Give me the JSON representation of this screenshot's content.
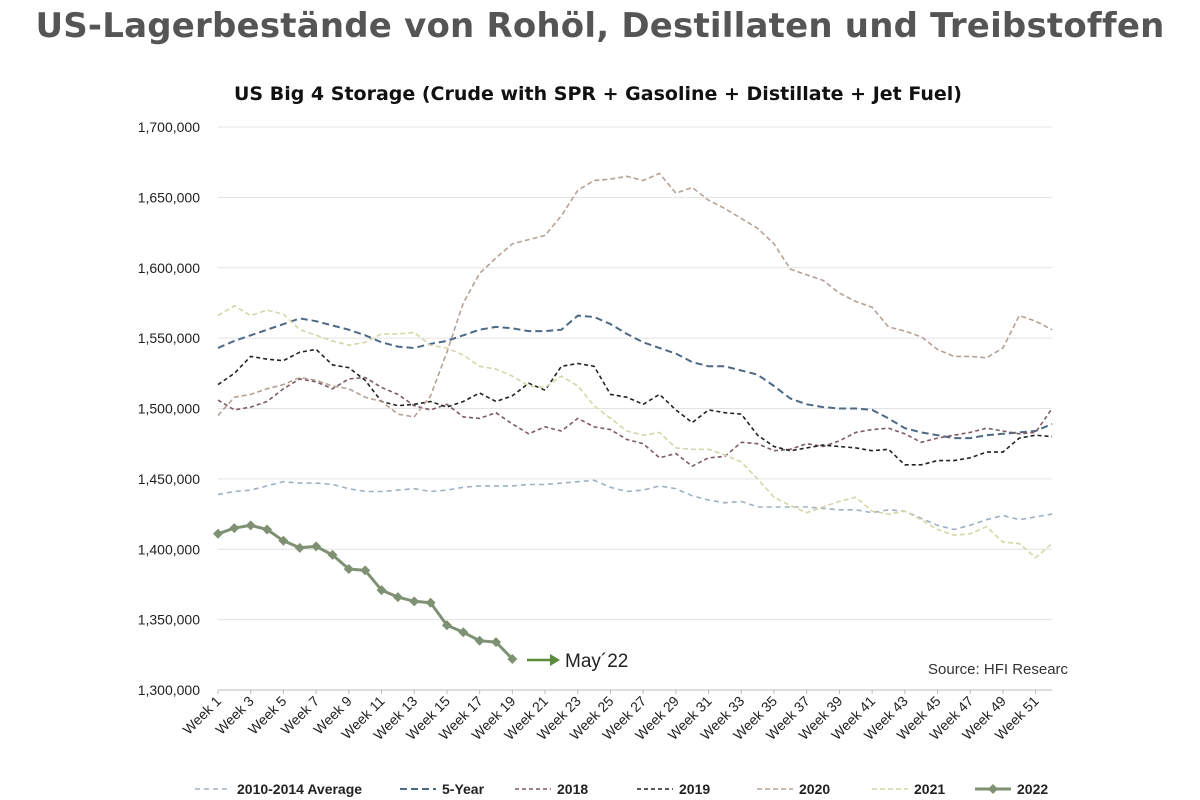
{
  "page_title": "US-Lagerbestände von Rohöl, Destillaten und Treibstoffen",
  "annotation": "May´22",
  "source": "Source: HFI Researc",
  "colors": {
    "2010-2014 Average": "#9fb0c2",
    "5-Year": "#4d6986",
    "2018": "#7e5a65",
    "2019": "#222222",
    "2020": "#b5a297",
    "2021": "#d6d6a6",
    "2022": "#7f9173",
    "arrow": "#5a8a3c",
    "grid": "#e3e3e3"
  },
  "chart_data": {
    "type": "line",
    "title": "US Big 4 Storage (Crude with SPR + Gasoline + Distillate + Jet Fuel)",
    "xlabel": "",
    "ylabel": "",
    "ylim": [
      1300000,
      1700000
    ],
    "yticks": [
      "1,300,000",
      "1,350,000",
      "1,400,000",
      "1,450,000",
      "1,500,000",
      "1,550,000",
      "1,600,000",
      "1,650,000",
      "1,700,000"
    ],
    "ytick_values": [
      1300000,
      1350000,
      1400000,
      1450000,
      1500000,
      1550000,
      1600000,
      1650000,
      1700000
    ],
    "x_tick_labels": [
      "Week 1",
      "Week 3",
      "Week 5",
      "Week 7",
      "Week 9",
      "Week 11",
      "Week 13",
      "Week 15",
      "Week 17",
      "Week 19",
      "Week 21",
      "Week 23",
      "Week 25",
      "Week 27",
      "Week 29",
      "Week 31",
      "Week 33",
      "Week 35",
      "Week 37",
      "Week 39",
      "Week 41",
      "Week 43",
      "Week 45",
      "Week 47",
      "Week 49",
      "Week 51"
    ],
    "x_tick_weeks": [
      1,
      3,
      5,
      7,
      9,
      11,
      13,
      15,
      17,
      19,
      21,
      23,
      25,
      27,
      29,
      31,
      33,
      35,
      37,
      39,
      41,
      43,
      45,
      47,
      49,
      51
    ],
    "xlim": [
      1,
      52
    ],
    "legend_position": "bottom",
    "series": [
      {
        "name": "2010-2014 Average",
        "style": "dashed",
        "values": [
          1439000,
          1441000,
          1442000,
          1445000,
          1448000,
          1447000,
          1447000,
          1446000,
          1443000,
          1441000,
          1441000,
          1442000,
          1443000,
          1441000,
          1442000,
          1444000,
          1445000,
          1445000,
          1445000,
          1446000,
          1446000,
          1447000,
          1448000,
          1449000,
          1444000,
          1441000,
          1442000,
          1445000,
          1443000,
          1438000,
          1435000,
          1433000,
          1434000,
          1430000,
          1430000,
          1430000,
          1430000,
          1429000,
          1428000,
          1428000,
          1426000,
          1428000,
          1427000,
          1422000,
          1417000,
          1414000,
          1417000,
          1421000,
          1424000,
          1421000,
          1423000,
          1425000
        ]
      },
      {
        "name": "5-Year",
        "style": "dashed",
        "values": [
          1543000,
          1548000,
          1552000,
          1556000,
          1560000,
          1564000,
          1562000,
          1559000,
          1556000,
          1552000,
          1547000,
          1544000,
          1543000,
          1546000,
          1548000,
          1552000,
          1556000,
          1558000,
          1557000,
          1555000,
          1555000,
          1556000,
          1566000,
          1565000,
          1560000,
          1553000,
          1547000,
          1543000,
          1539000,
          1533000,
          1530000,
          1530000,
          1527000,
          1524000,
          1516000,
          1507000,
          1503000,
          1501000,
          1500000,
          1500000,
          1499000,
          1493000,
          1486000,
          1483000,
          1481000,
          1479000,
          1479000,
          1481000,
          1482000,
          1483000,
          1484000,
          1489000
        ]
      },
      {
        "name": "2018",
        "style": "dashed",
        "values": [
          1506000,
          1499000,
          1501000,
          1505000,
          1514000,
          1521000,
          1519000,
          1514000,
          1521000,
          1522000,
          1515000,
          1510000,
          1502000,
          1499000,
          1503000,
          1494000,
          1493000,
          1497000,
          1489000,
          1482000,
          1487000,
          1484000,
          1493000,
          1487000,
          1485000,
          1478000,
          1475000,
          1465000,
          1468000,
          1459000,
          1465000,
          1466000,
          1476000,
          1475000,
          1470000,
          1471000,
          1475000,
          1473000,
          1477000,
          1483000,
          1485000,
          1486000,
          1482000,
          1476000,
          1479000,
          1481000,
          1483000,
          1486000,
          1484000,
          1482000,
          1483000,
          1500000
        ]
      },
      {
        "name": "2019",
        "style": "dashed",
        "values": [
          1517000,
          1525000,
          1537000,
          1535000,
          1534000,
          1540000,
          1542000,
          1531000,
          1529000,
          1520000,
          1505000,
          1502000,
          1503000,
          1505000,
          1501000,
          1505000,
          1511000,
          1505000,
          1509000,
          1518000,
          1513000,
          1530000,
          1532000,
          1530000,
          1510000,
          1508000,
          1503000,
          1510000,
          1499000,
          1490000,
          1499000,
          1497000,
          1496000,
          1481000,
          1473000,
          1470000,
          1472000,
          1474000,
          1473000,
          1472000,
          1470000,
          1471000,
          1460000,
          1460000,
          1463000,
          1463000,
          1465000,
          1469000,
          1469000,
          1479000,
          1481000,
          1480000
        ]
      },
      {
        "name": "2020",
        "style": "dashed",
        "values": [
          1495000,
          1508000,
          1510000,
          1514000,
          1517000,
          1522000,
          1520000,
          1516000,
          1514000,
          1508000,
          1505000,
          1496000,
          1494000,
          1509000,
          1540000,
          1575000,
          1596000,
          1607000,
          1617000,
          1620000,
          1623000,
          1637000,
          1655000,
          1662000,
          1663000,
          1665000,
          1662000,
          1667000,
          1653000,
          1657000,
          1648000,
          1642000,
          1635000,
          1628000,
          1617000,
          1599000,
          1595000,
          1591000,
          1582000,
          1576000,
          1572000,
          1558000,
          1555000,
          1551000,
          1542000,
          1537000,
          1537000,
          1536000,
          1543000,
          1566000,
          1562000,
          1556000
        ]
      },
      {
        "name": "2021",
        "style": "dashed",
        "values": [
          1566000,
          1573000,
          1566000,
          1570000,
          1567000,
          1556000,
          1552000,
          1548000,
          1545000,
          1547000,
          1553000,
          1553000,
          1554000,
          1545000,
          1543000,
          1538000,
          1530000,
          1528000,
          1523000,
          1516000,
          1515000,
          1523000,
          1516000,
          1502000,
          1493000,
          1484000,
          1481000,
          1483000,
          1472000,
          1471000,
          1471000,
          1467000,
          1462000,
          1450000,
          1437000,
          1431000,
          1426000,
          1430000,
          1434000,
          1437000,
          1427000,
          1425000,
          1427000,
          1421000,
          1414000,
          1410000,
          1411000,
          1416000,
          1405000,
          1404000,
          1394000,
          1404000
        ]
      },
      {
        "name": "2022",
        "style": "solid-marker",
        "values": [
          1411000,
          1415000,
          1417000,
          1414000,
          1406000,
          1401000,
          1402000,
          1396000,
          1386000,
          1385000,
          1371000,
          1366000,
          1363000,
          1362000,
          1346000,
          1341000,
          1335000,
          1334000,
          1322000
        ]
      }
    ]
  }
}
